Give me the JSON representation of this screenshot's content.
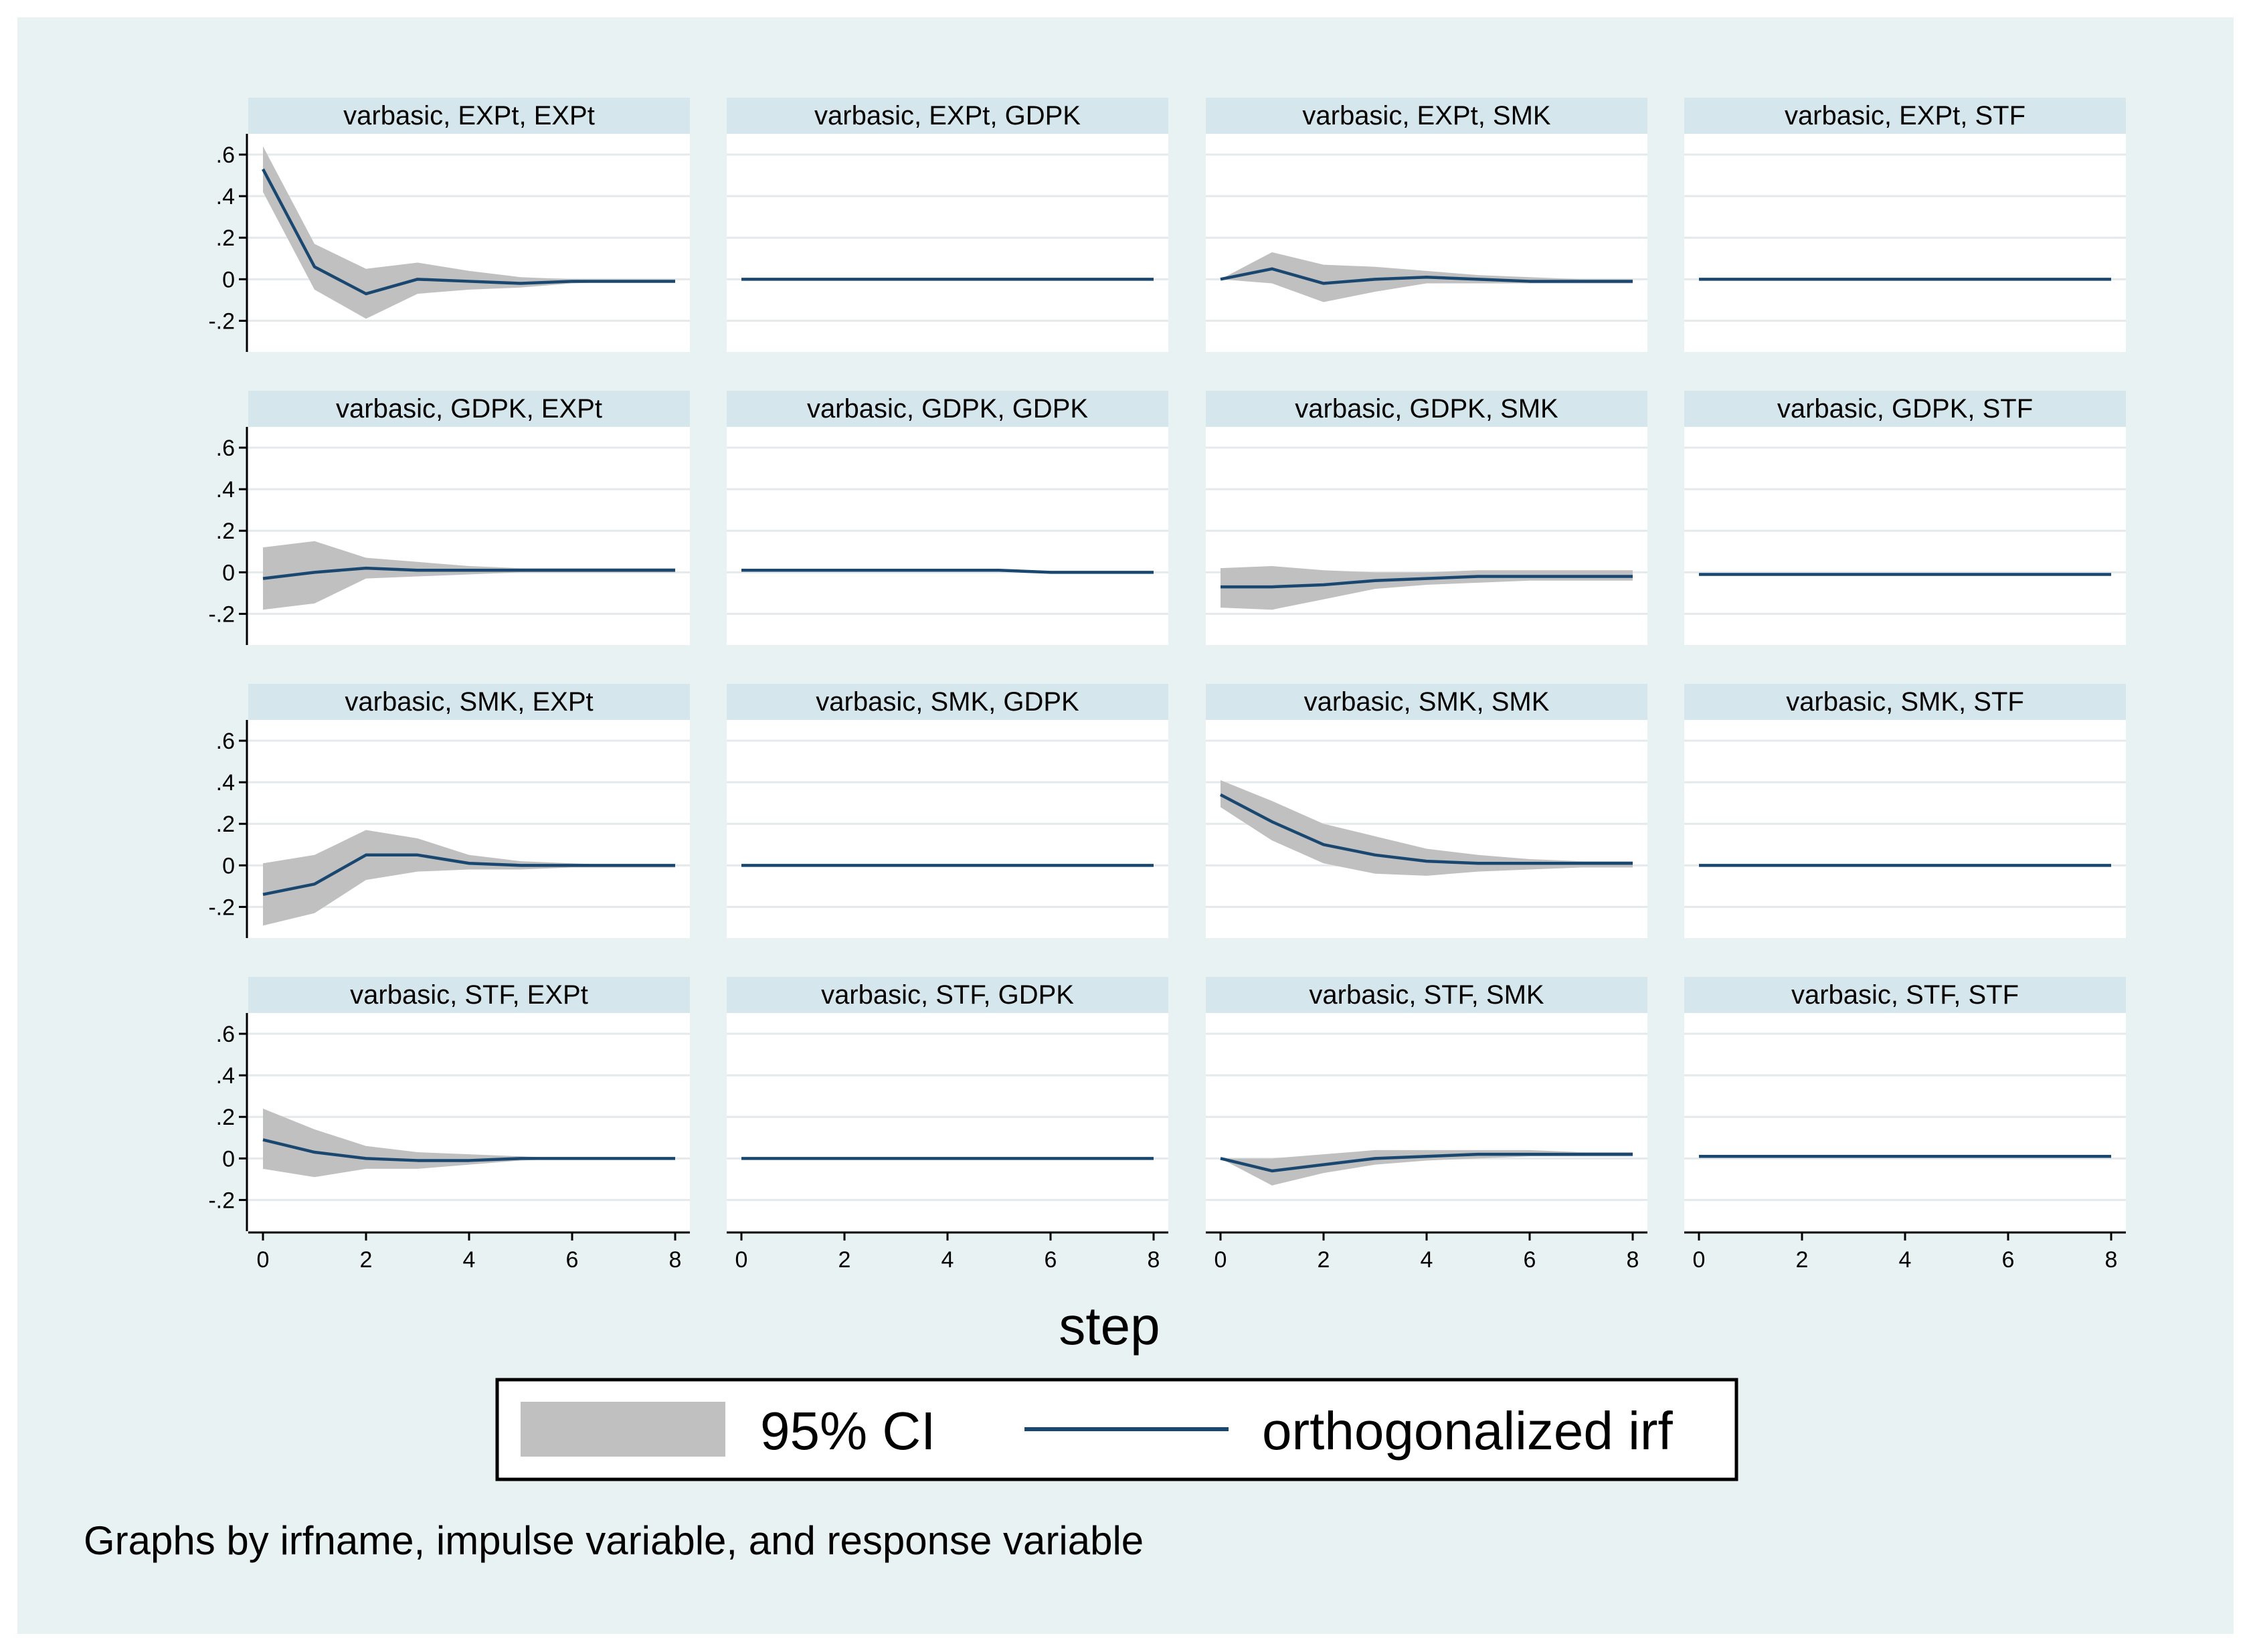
{
  "chart_data": {
    "type": "line",
    "layout": "4x4 small multiples",
    "x": [
      0,
      1,
      2,
      3,
      4,
      5,
      6,
      7,
      8
    ],
    "xlabel": "step",
    "xlim": [
      0,
      8
    ],
    "xticks": [
      0,
      2,
      4,
      6,
      8
    ],
    "xtick_labels": [
      "0",
      "2",
      "4",
      "6",
      "8"
    ],
    "ylim": [
      -0.35,
      0.7
    ],
    "yticks": [
      -0.2,
      0,
      0.2,
      0.4,
      0.6
    ],
    "ytick_labels": [
      "-.2",
      "0",
      ".2",
      ".4",
      ".6"
    ],
    "grid": true,
    "legend": {
      "placement": "bottom",
      "entries": [
        {
          "name": "95% CI",
          "color": "#c0c0c0",
          "kind": "band"
        },
        {
          "name": "orthogonalized irf",
          "color": "#1a476f",
          "kind": "line"
        }
      ]
    },
    "note": "Graphs by irfname, impulse variable, and response variable",
    "colors": {
      "band": "#c0c0c0",
      "line": "#1a476f",
      "header": "#d5e6ec",
      "grid": "#e4e9eb",
      "background": "#e8f2f2"
    },
    "panels": [
      {
        "title": "varbasic, EXPt, EXPt",
        "irf": [
          0.53,
          0.06,
          -0.07,
          0.0,
          -0.01,
          -0.02,
          -0.01,
          -0.01,
          -0.01
        ],
        "lower": [
          0.42,
          -0.05,
          -0.19,
          -0.07,
          -0.05,
          -0.04,
          -0.02,
          -0.01,
          -0.01
        ],
        "upper": [
          0.64,
          0.17,
          0.05,
          0.08,
          0.04,
          0.01,
          0.0,
          0.0,
          0.0
        ]
      },
      {
        "title": "varbasic, EXPt, GDPK",
        "irf": [
          0.0,
          0.0,
          0.0,
          0.0,
          0.0,
          0.0,
          0.0,
          0.0,
          0.0
        ],
        "lower": [
          0.0,
          0.0,
          0.0,
          0.0,
          0.0,
          0.0,
          0.0,
          0.0,
          0.0
        ],
        "upper": [
          0.0,
          0.0,
          0.0,
          0.0,
          0.0,
          0.0,
          0.0,
          0.0,
          0.0
        ]
      },
      {
        "title": "varbasic, EXPt, SMK",
        "irf": [
          0.0,
          0.05,
          -0.02,
          0.0,
          0.01,
          0.0,
          -0.01,
          -0.01,
          -0.01
        ],
        "lower": [
          0.0,
          -0.02,
          -0.11,
          -0.06,
          -0.02,
          -0.02,
          -0.02,
          -0.02,
          -0.02
        ],
        "upper": [
          0.0,
          0.13,
          0.07,
          0.06,
          0.04,
          0.02,
          0.01,
          0.0,
          0.0
        ]
      },
      {
        "title": "varbasic, EXPt, STF",
        "irf": [
          0.0,
          0.0,
          0.0,
          0.0,
          0.0,
          0.0,
          0.0,
          0.0,
          0.0
        ],
        "lower": [
          0.0,
          0.0,
          0.0,
          0.0,
          0.0,
          0.0,
          0.0,
          0.0,
          0.0
        ],
        "upper": [
          0.0,
          0.0,
          0.0,
          0.0,
          0.0,
          0.0,
          0.0,
          0.0,
          0.0
        ]
      },
      {
        "title": "varbasic, GDPK, EXPt",
        "irf": [
          -0.03,
          0.0,
          0.02,
          0.01,
          0.01,
          0.01,
          0.01,
          0.01,
          0.01
        ],
        "lower": [
          -0.18,
          -0.15,
          -0.03,
          -0.02,
          -0.01,
          0.0,
          0.0,
          0.0,
          0.0
        ],
        "upper": [
          0.12,
          0.15,
          0.07,
          0.05,
          0.03,
          0.02,
          0.02,
          0.02,
          0.02
        ]
      },
      {
        "title": "varbasic, GDPK, GDPK",
        "irf": [
          0.01,
          0.01,
          0.01,
          0.01,
          0.01,
          0.01,
          0.0,
          0.0,
          0.0
        ],
        "lower": [
          0.01,
          0.01,
          0.01,
          0.01,
          0.01,
          0.01,
          0.0,
          0.0,
          0.0
        ],
        "upper": [
          0.01,
          0.01,
          0.01,
          0.01,
          0.01,
          0.01,
          0.0,
          0.0,
          0.0
        ]
      },
      {
        "title": "varbasic, GDPK, SMK",
        "irf": [
          -0.07,
          -0.07,
          -0.06,
          -0.04,
          -0.03,
          -0.02,
          -0.02,
          -0.02,
          -0.02
        ],
        "lower": [
          -0.17,
          -0.18,
          -0.13,
          -0.08,
          -0.06,
          -0.05,
          -0.04,
          -0.04,
          -0.04
        ],
        "upper": [
          0.02,
          0.03,
          0.01,
          0.0,
          0.0,
          0.01,
          0.01,
          0.01,
          0.01
        ]
      },
      {
        "title": "varbasic, GDPK, STF",
        "irf": [
          -0.01,
          -0.01,
          -0.01,
          -0.01,
          -0.01,
          -0.01,
          -0.01,
          -0.01,
          -0.01
        ],
        "lower": [
          -0.01,
          -0.01,
          -0.01,
          -0.01,
          -0.01,
          -0.01,
          -0.01,
          -0.01,
          -0.01
        ],
        "upper": [
          -0.01,
          -0.01,
          -0.01,
          -0.01,
          -0.01,
          -0.01,
          -0.01,
          -0.01,
          -0.01
        ]
      },
      {
        "title": "varbasic, SMK, EXPt",
        "irf": [
          -0.14,
          -0.09,
          0.05,
          0.05,
          0.01,
          0.0,
          0.0,
          0.0,
          0.0
        ],
        "lower": [
          -0.29,
          -0.23,
          -0.07,
          -0.03,
          -0.02,
          -0.02,
          -0.01,
          -0.01,
          -0.01
        ],
        "upper": [
          0.01,
          0.05,
          0.17,
          0.13,
          0.05,
          0.02,
          0.01,
          0.0,
          0.0
        ]
      },
      {
        "title": "varbasic, SMK, GDPK",
        "irf": [
          0.0,
          0.0,
          0.0,
          0.0,
          0.0,
          0.0,
          0.0,
          0.0,
          0.0
        ],
        "lower": [
          0.0,
          0.0,
          0.0,
          0.0,
          0.0,
          0.0,
          0.0,
          0.0,
          0.0
        ],
        "upper": [
          0.0,
          0.0,
          0.0,
          0.0,
          0.0,
          0.0,
          0.0,
          0.0,
          0.0
        ]
      },
      {
        "title": "varbasic, SMK, SMK",
        "irf": [
          0.34,
          0.21,
          0.1,
          0.05,
          0.02,
          0.01,
          0.01,
          0.01,
          0.01
        ],
        "lower": [
          0.28,
          0.12,
          0.01,
          -0.04,
          -0.05,
          -0.03,
          -0.02,
          -0.01,
          -0.01
        ],
        "upper": [
          0.41,
          0.31,
          0.2,
          0.14,
          0.08,
          0.05,
          0.03,
          0.02,
          0.02
        ]
      },
      {
        "title": "varbasic, SMK, STF",
        "irf": [
          0.0,
          0.0,
          0.0,
          0.0,
          0.0,
          0.0,
          0.0,
          0.0,
          0.0
        ],
        "lower": [
          0.0,
          0.0,
          0.0,
          0.0,
          0.0,
          0.0,
          0.0,
          0.0,
          0.0
        ],
        "upper": [
          0.0,
          0.0,
          0.0,
          0.0,
          0.0,
          0.0,
          0.0,
          0.0,
          0.0
        ]
      },
      {
        "title": "varbasic, STF, EXPt",
        "irf": [
          0.09,
          0.03,
          0.0,
          -0.01,
          -0.01,
          0.0,
          0.0,
          0.0,
          0.0
        ],
        "lower": [
          -0.05,
          -0.09,
          -0.05,
          -0.05,
          -0.03,
          -0.01,
          0.0,
          0.0,
          0.0
        ],
        "upper": [
          0.24,
          0.14,
          0.06,
          0.03,
          0.02,
          0.01,
          0.0,
          0.0,
          0.0
        ]
      },
      {
        "title": "varbasic, STF, GDPK",
        "irf": [
          0.0,
          0.0,
          0.0,
          0.0,
          0.0,
          0.0,
          0.0,
          0.0,
          0.0
        ],
        "lower": [
          0.0,
          0.0,
          0.0,
          0.0,
          0.0,
          0.0,
          0.0,
          0.0,
          0.0
        ],
        "upper": [
          0.0,
          0.0,
          0.0,
          0.0,
          0.0,
          0.0,
          0.0,
          0.0,
          0.0
        ]
      },
      {
        "title": "varbasic, STF, SMK",
        "irf": [
          0.0,
          -0.06,
          -0.03,
          0.0,
          0.01,
          0.02,
          0.02,
          0.02,
          0.02
        ],
        "lower": [
          0.0,
          -0.13,
          -0.07,
          -0.03,
          -0.01,
          0.0,
          0.01,
          0.01,
          0.01
        ],
        "upper": [
          0.0,
          0.0,
          0.02,
          0.04,
          0.04,
          0.04,
          0.04,
          0.03,
          0.03
        ]
      },
      {
        "title": "varbasic, STF, STF",
        "irf": [
          0.01,
          0.01,
          0.01,
          0.01,
          0.01,
          0.01,
          0.01,
          0.01,
          0.01
        ],
        "lower": [
          0.01,
          0.01,
          0.01,
          0.01,
          0.01,
          0.01,
          0.01,
          0.01,
          0.01
        ],
        "upper": [
          0.01,
          0.01,
          0.01,
          0.01,
          0.01,
          0.01,
          0.01,
          0.01,
          0.01
        ]
      }
    ]
  }
}
